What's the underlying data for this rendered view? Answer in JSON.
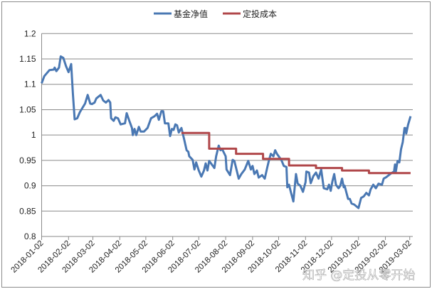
{
  "chart_data": {
    "type": "line",
    "title": "",
    "xlabel": "",
    "ylabel": "",
    "ylim": [
      0.8,
      1.2
    ],
    "yticks": [
      "0.8",
      "0.85",
      "0.9",
      "0.95",
      "1",
      "1.05",
      "1.1",
      "1.15",
      "1.2"
    ],
    "xticks": [
      "2018-01-02",
      "2018-02-02",
      "2018-03-02",
      "2018-04-02",
      "2018-05-02",
      "2018-06-02",
      "2018-07-02",
      "2018-08-02",
      "2018-09-02",
      "2018-10-02",
      "2018-11-02",
      "2018-12-02",
      "2019-01-02",
      "2019-02-02",
      "2019-03-02"
    ],
    "grid": "horizontal",
    "legend_position": "top",
    "series": [
      {
        "name": "基金净值",
        "color": "#4a78b3",
        "points": [
          [
            "2018-01-02",
            1.102
          ],
          [
            "2018-01-05",
            1.116
          ],
          [
            "2018-01-11",
            1.128
          ],
          [
            "2018-01-16",
            1.129
          ],
          [
            "2018-01-17",
            1.133
          ],
          [
            "2018-01-19",
            1.126
          ],
          [
            "2018-01-22",
            1.133
          ],
          [
            "2018-01-24",
            1.155
          ],
          [
            "2018-01-27",
            1.152
          ],
          [
            "2018-01-30",
            1.136
          ],
          [
            "2018-02-02",
            1.124
          ],
          [
            "2018-02-05",
            1.14
          ],
          [
            "2018-02-07",
            1.082
          ],
          [
            "2018-02-09",
            1.031
          ],
          [
            "2018-02-12",
            1.033
          ],
          [
            "2018-02-15",
            1.045
          ],
          [
            "2018-02-21",
            1.062
          ],
          [
            "2018-02-24",
            1.079
          ],
          [
            "2018-02-27",
            1.062
          ],
          [
            "2018-03-01",
            1.061
          ],
          [
            "2018-03-04",
            1.064
          ],
          [
            "2018-03-06",
            1.072
          ],
          [
            "2018-03-11",
            1.079
          ],
          [
            "2018-03-14",
            1.068
          ],
          [
            "2018-03-17",
            1.064
          ],
          [
            "2018-03-20",
            1.069
          ],
          [
            "2018-03-22",
            1.064
          ],
          [
            "2018-03-23",
            1.033
          ],
          [
            "2018-03-26",
            1.028
          ],
          [
            "2018-03-28",
            1.035
          ],
          [
            "2018-03-31",
            1.033
          ],
          [
            "2018-04-03",
            1.021
          ],
          [
            "2018-04-08",
            1.023
          ],
          [
            "2018-04-10",
            1.043
          ],
          [
            "2018-04-13",
            1.028
          ],
          [
            "2018-04-16",
            1.014
          ],
          [
            "2018-04-17",
            1.0
          ],
          [
            "2018-04-19",
            1.012
          ],
          [
            "2018-04-21",
            1.0
          ],
          [
            "2018-04-24",
            1.016
          ],
          [
            "2018-04-26",
            1.007
          ],
          [
            "2018-04-30",
            1.007
          ],
          [
            "2018-05-04",
            1.014
          ],
          [
            "2018-05-08",
            1.033
          ],
          [
            "2018-05-12",
            1.037
          ],
          [
            "2018-05-15",
            1.042
          ],
          [
            "2018-05-17",
            1.03
          ],
          [
            "2018-05-20",
            1.047
          ],
          [
            "2018-05-22",
            1.047
          ],
          [
            "2018-05-24",
            1.023
          ],
          [
            "2018-05-28",
            1.023
          ],
          [
            "2018-05-30",
            0.998
          ],
          [
            "2018-06-01",
            1.012
          ],
          [
            "2018-06-03",
            1.01
          ],
          [
            "2018-06-05",
            1.021
          ],
          [
            "2018-06-07",
            1.019
          ],
          [
            "2018-06-09",
            1.005
          ],
          [
            "2018-06-12",
            1.014
          ],
          [
            "2018-06-14",
            1.0
          ],
          [
            "2018-06-15",
            0.993
          ],
          [
            "2018-06-18",
            0.97
          ],
          [
            "2018-06-20",
            0.967
          ],
          [
            "2018-06-21",
            0.958
          ],
          [
            "2018-06-25",
            0.951
          ],
          [
            "2018-06-27",
            0.932
          ],
          [
            "2018-06-29",
            0.946
          ],
          [
            "2018-07-02",
            0.93
          ],
          [
            "2018-07-05",
            0.918
          ],
          [
            "2018-07-08",
            0.93
          ],
          [
            "2018-07-10",
            0.944
          ],
          [
            "2018-07-12",
            0.93
          ],
          [
            "2018-07-14",
            0.949
          ],
          [
            "2018-07-17",
            0.942
          ],
          [
            "2018-07-20",
            0.935
          ],
          [
            "2018-07-22",
            0.958
          ],
          [
            "2018-07-25",
            0.979
          ],
          [
            "2018-07-27",
            0.97
          ],
          [
            "2018-07-29",
            0.972
          ],
          [
            "2018-08-02",
            0.958
          ],
          [
            "2018-08-03",
            0.932
          ],
          [
            "2018-08-07",
            0.921
          ],
          [
            "2018-08-10",
            0.951
          ],
          [
            "2018-08-12",
            0.949
          ],
          [
            "2018-08-15",
            0.928
          ],
          [
            "2018-08-17",
            0.914
          ],
          [
            "2018-08-20",
            0.923
          ],
          [
            "2018-08-24",
            0.932
          ],
          [
            "2018-08-28",
            0.949
          ],
          [
            "2018-08-31",
            0.932
          ],
          [
            "2018-09-02",
            0.939
          ],
          [
            "2018-09-04",
            0.923
          ],
          [
            "2018-09-07",
            0.93
          ],
          [
            "2018-09-09",
            0.916
          ],
          [
            "2018-09-13",
            0.921
          ],
          [
            "2018-09-16",
            0.914
          ],
          [
            "2018-09-19",
            0.937
          ],
          [
            "2018-09-21",
            0.951
          ],
          [
            "2018-09-23",
            0.963
          ],
          [
            "2018-09-26",
            0.958
          ],
          [
            "2018-09-28",
            0.97
          ],
          [
            "2018-09-30",
            0.963
          ],
          [
            "2018-10-05",
            0.951
          ],
          [
            "2018-10-08",
            0.939
          ],
          [
            "2018-10-11",
            0.937
          ],
          [
            "2018-10-12",
            0.897
          ],
          [
            "2018-10-14",
            0.902
          ],
          [
            "2018-10-16",
            0.888
          ],
          [
            "2018-10-19",
            0.869
          ],
          [
            "2018-10-22",
            0.923
          ],
          [
            "2018-10-24",
            0.904
          ],
          [
            "2018-10-27",
            0.9
          ],
          [
            "2018-10-30",
            0.888
          ],
          [
            "2018-11-02",
            0.907
          ],
          [
            "2018-11-03",
            0.928
          ],
          [
            "2018-11-06",
            0.926
          ],
          [
            "2018-11-08",
            0.905
          ],
          [
            "2018-11-11",
            0.919
          ],
          [
            "2018-11-14",
            0.926
          ],
          [
            "2018-11-17",
            0.914
          ],
          [
            "2018-11-20",
            0.932
          ],
          [
            "2018-11-23",
            0.895
          ],
          [
            "2018-11-27",
            0.893
          ],
          [
            "2018-11-29",
            0.902
          ],
          [
            "2018-12-01",
            0.89
          ],
          [
            "2018-12-03",
            0.909
          ],
          [
            "2018-12-05",
            0.923
          ],
          [
            "2018-12-07",
            0.902
          ],
          [
            "2018-12-10",
            0.895
          ],
          [
            "2018-12-12",
            0.9
          ],
          [
            "2018-12-14",
            0.914
          ],
          [
            "2018-12-16",
            0.897
          ],
          [
            "2018-12-17",
            0.9
          ],
          [
            "2018-12-21",
            0.874
          ],
          [
            "2018-12-23",
            0.874
          ],
          [
            "2018-12-25",
            0.865
          ],
          [
            "2018-12-28",
            0.863
          ],
          [
            "2019-01-02",
            0.856
          ],
          [
            "2019-01-05",
            0.876
          ],
          [
            "2019-01-08",
            0.879
          ],
          [
            "2019-01-11",
            0.886
          ],
          [
            "2019-01-14",
            0.881
          ],
          [
            "2019-01-16",
            0.893
          ],
          [
            "2019-01-19",
            0.902
          ],
          [
            "2019-01-22",
            0.895
          ],
          [
            "2019-01-25",
            0.904
          ],
          [
            "2019-01-29",
            0.902
          ],
          [
            "2019-01-31",
            0.914
          ],
          [
            "2019-02-03",
            0.917
          ],
          [
            "2019-02-06",
            0.921
          ],
          [
            "2019-02-09",
            0.925
          ],
          [
            "2019-02-12",
            0.928
          ],
          [
            "2019-02-13",
            0.942
          ],
          [
            "2019-02-14",
            0.928
          ],
          [
            "2019-02-16",
            0.949
          ],
          [
            "2019-02-18",
            0.946
          ],
          [
            "2019-02-20",
            0.972
          ],
          [
            "2019-02-22",
            0.986
          ],
          [
            "2019-02-24",
            1.014
          ],
          [
            "2019-02-25",
            1.014
          ],
          [
            "2019-02-26",
            1.003
          ],
          [
            "2019-02-28",
            1.02
          ],
          [
            "2019-03-03",
            1.037
          ]
        ]
      },
      {
        "name": "定投成本",
        "color": "#b0474a",
        "points": [
          [
            "2018-06-12",
            1.004
          ],
          [
            "2018-07-14",
            1.004
          ],
          [
            "2018-07-14",
            0.973
          ],
          [
            "2018-08-14",
            0.973
          ],
          [
            "2018-08-14",
            0.963
          ],
          [
            "2018-09-14",
            0.963
          ],
          [
            "2018-09-14",
            0.953
          ],
          [
            "2018-10-14",
            0.953
          ],
          [
            "2018-10-14",
            0.94
          ],
          [
            "2018-11-14",
            0.94
          ],
          [
            "2018-11-14",
            0.935
          ],
          [
            "2018-12-14",
            0.935
          ],
          [
            "2018-12-14",
            0.93
          ],
          [
            "2019-01-14",
            0.93
          ],
          [
            "2019-01-14",
            0.925
          ],
          [
            "2019-03-03",
            0.925
          ]
        ]
      }
    ]
  },
  "watermark": "知乎 @定投从零开始"
}
